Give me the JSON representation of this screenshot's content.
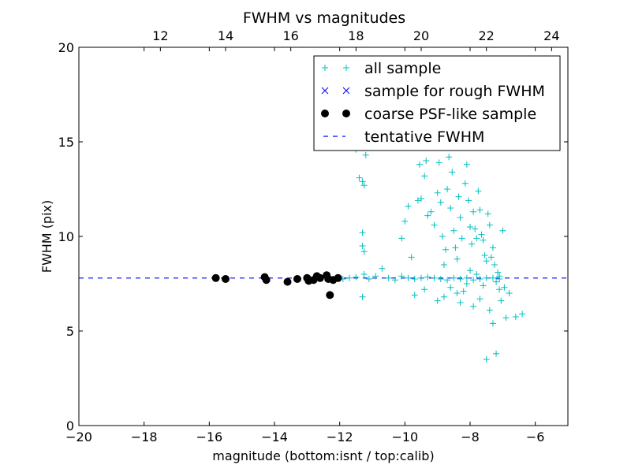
{
  "chart_data": {
    "type": "scatter",
    "title": "FWHM vs magnitudes",
    "xlabel": "magnitude (bottom:isnt / top:calib)",
    "ylabel": "FWHM (pix)",
    "xlim": [
      -20,
      -5
    ],
    "ylim": [
      0,
      20
    ],
    "top_xlim": [
      9.5,
      24.5
    ],
    "x_ticks": [
      -20,
      -18,
      -16,
      -14,
      -12,
      -10,
      -8,
      -6
    ],
    "x_tick_labels": [
      "−20",
      "−18",
      "−16",
      "−14",
      "−12",
      "−10",
      "−8",
      "−6"
    ],
    "top_x_ticks": [
      12,
      14,
      16,
      18,
      20,
      22,
      24
    ],
    "top_x_tick_labels": [
      "12",
      "14",
      "16",
      "18",
      "20",
      "22",
      "24"
    ],
    "y_ticks": [
      0,
      5,
      10,
      15,
      20
    ],
    "y_tick_labels": [
      "0",
      "5",
      "10",
      "15",
      "20"
    ],
    "grid": false,
    "legend_position": "upper right",
    "legend": [
      {
        "label": "all sample",
        "marker": "plus",
        "color": "#00bfbf"
      },
      {
        "label": "sample for rough FWHM",
        "marker": "x",
        "color": "#0000ff"
      },
      {
        "label": "coarse PSF-like sample",
        "marker": "circle",
        "color": "#000000"
      },
      {
        "label": "tentative FWHM",
        "marker": "dashed-line",
        "color": "#0000ff"
      }
    ],
    "series": [
      {
        "name": "all sample",
        "marker": "plus",
        "color": "#00bfbf",
        "points": [
          [
            -15.8,
            7.8
          ],
          [
            -15.5,
            7.75
          ],
          [
            -14.3,
            7.85
          ],
          [
            -14.25,
            7.7
          ],
          [
            -13.6,
            7.6
          ],
          [
            -13.3,
            7.75
          ],
          [
            -13.0,
            7.8
          ],
          [
            -12.95,
            7.65
          ],
          [
            -12.8,
            7.7
          ],
          [
            -12.7,
            7.9
          ],
          [
            -12.6,
            7.8
          ],
          [
            -12.4,
            7.95
          ],
          [
            -12.35,
            7.75
          ],
          [
            -12.3,
            6.9
          ],
          [
            -12.2,
            7.7
          ],
          [
            -12.05,
            7.8
          ],
          [
            -11.9,
            7.75
          ],
          [
            -11.7,
            7.8
          ],
          [
            -11.5,
            7.85
          ],
          [
            -11.3,
            6.8
          ],
          [
            -11.25,
            8.0
          ],
          [
            -11.1,
            7.75
          ],
          [
            -10.9,
            7.9
          ],
          [
            -10.7,
            8.3
          ],
          [
            -10.5,
            7.8
          ],
          [
            -10.3,
            7.7
          ],
          [
            -10.1,
            7.9
          ],
          [
            -9.9,
            7.8
          ],
          [
            -9.7,
            7.75
          ],
          [
            -9.5,
            7.8
          ],
          [
            -9.3,
            7.85
          ],
          [
            -9.1,
            7.8
          ],
          [
            -8.9,
            7.75
          ],
          [
            -8.7,
            7.7
          ],
          [
            -8.5,
            7.8
          ],
          [
            -8.3,
            7.75
          ],
          [
            -8.1,
            7.8
          ],
          [
            -7.9,
            7.7
          ],
          [
            -7.7,
            7.75
          ],
          [
            -7.5,
            7.8
          ],
          [
            -7.3,
            7.8
          ],
          [
            -7.1,
            7.75
          ],
          [
            -11.5,
            14.6
          ],
          [
            -11.4,
            13.1
          ],
          [
            -11.3,
            12.9
          ],
          [
            -11.25,
            12.7
          ],
          [
            -11.2,
            14.3
          ],
          [
            -11.3,
            10.2
          ],
          [
            -11.3,
            9.5
          ],
          [
            -11.25,
            9.2
          ],
          [
            -10.1,
            9.9
          ],
          [
            -10.0,
            10.8
          ],
          [
            -9.9,
            11.6
          ],
          [
            -9.8,
            8.9
          ],
          [
            -9.6,
            11.9
          ],
          [
            -9.55,
            13.8
          ],
          [
            -9.5,
            12.0
          ],
          [
            -9.4,
            13.2
          ],
          [
            -9.35,
            14.0
          ],
          [
            -9.3,
            11.1
          ],
          [
            -9.2,
            11.3
          ],
          [
            -9.1,
            10.6
          ],
          [
            -9.0,
            12.3
          ],
          [
            -8.95,
            13.9
          ],
          [
            -8.9,
            11.8
          ],
          [
            -8.85,
            10.0
          ],
          [
            -8.8,
            8.5
          ],
          [
            -8.75,
            9.3
          ],
          [
            -8.7,
            12.5
          ],
          [
            -8.65,
            14.2
          ],
          [
            -8.6,
            11.5
          ],
          [
            -8.55,
            13.4
          ],
          [
            -8.5,
            10.3
          ],
          [
            -8.45,
            9.4
          ],
          [
            -8.4,
            8.8
          ],
          [
            -8.35,
            12.1
          ],
          [
            -8.3,
            11.0
          ],
          [
            -8.25,
            9.9
          ],
          [
            -8.2,
            7.1
          ],
          [
            -8.15,
            12.8
          ],
          [
            -8.1,
            13.8
          ],
          [
            -8.05,
            11.9
          ],
          [
            -8.0,
            10.5
          ],
          [
            -7.95,
            9.6
          ],
          [
            -7.9,
            11.3
          ],
          [
            -7.85,
            10.4
          ],
          [
            -7.8,
            9.9
          ],
          [
            -7.75,
            12.4
          ],
          [
            -7.7,
            11.4
          ],
          [
            -7.65,
            10.1
          ],
          [
            -7.6,
            9.8
          ],
          [
            -7.55,
            9.0
          ],
          [
            -7.5,
            8.7
          ],
          [
            -7.45,
            11.2
          ],
          [
            -7.4,
            10.6
          ],
          [
            -7.35,
            8.9
          ],
          [
            -7.3,
            9.4
          ],
          [
            -7.25,
            8.5
          ],
          [
            -7.2,
            7.6
          ],
          [
            -7.15,
            8.1
          ],
          [
            -7.1,
            7.9
          ],
          [
            -7.05,
            6.6
          ],
          [
            -7.0,
            10.3
          ],
          [
            -6.95,
            7.3
          ],
          [
            -8.3,
            6.5
          ],
          [
            -8.1,
            7.5
          ],
          [
            -7.9,
            6.3
          ],
          [
            -7.7,
            6.7
          ],
          [
            -7.4,
            6.1
          ],
          [
            -7.3,
            5.4
          ],
          [
            -7.1,
            7.2
          ],
          [
            -6.9,
            5.7
          ],
          [
            -6.8,
            7.0
          ],
          [
            -6.6,
            5.75
          ],
          [
            -6.4,
            5.9
          ],
          [
            -7.2,
            3.8
          ],
          [
            -7.5,
            3.5
          ],
          [
            -8.8,
            6.8
          ],
          [
            -9.0,
            6.6
          ],
          [
            -9.4,
            7.2
          ],
          [
            -9.7,
            6.9
          ],
          [
            -8.6,
            7.3
          ],
          [
            -8.0,
            8.2
          ],
          [
            -7.8,
            8.0
          ],
          [
            -7.6,
            7.4
          ],
          [
            -8.4,
            7.0
          ]
        ]
      },
      {
        "name": "coarse PSF-like sample",
        "marker": "circle",
        "color": "#000000",
        "points": [
          [
            -15.8,
            7.8
          ],
          [
            -15.5,
            7.75
          ],
          [
            -14.3,
            7.85
          ],
          [
            -14.25,
            7.7
          ],
          [
            -13.6,
            7.6
          ],
          [
            -13.3,
            7.75
          ],
          [
            -13.0,
            7.8
          ],
          [
            -12.95,
            7.65
          ],
          [
            -12.8,
            7.7
          ],
          [
            -12.7,
            7.9
          ],
          [
            -12.6,
            7.8
          ],
          [
            -12.4,
            7.95
          ],
          [
            -12.35,
            7.75
          ],
          [
            -12.3,
            6.9
          ],
          [
            -12.2,
            7.7
          ],
          [
            -12.05,
            7.8
          ]
        ]
      }
    ],
    "hlines": [
      {
        "name": "tentative FWHM",
        "y": 7.8,
        "style": "dashed",
        "color": "#0000ff"
      }
    ]
  }
}
